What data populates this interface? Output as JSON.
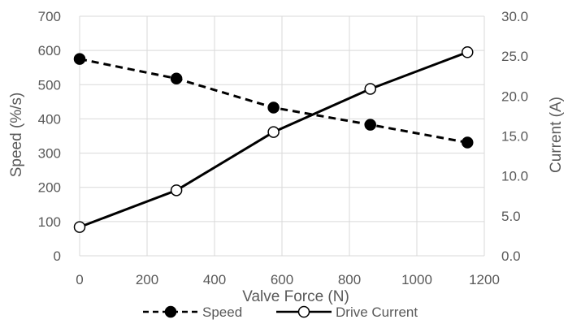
{
  "chart_data": {
    "type": "line",
    "title": "",
    "xlabel": "Valve Force (N)",
    "ylabel": "Speed (%/s)",
    "y2label": "Current (A)",
    "xlim": [
      0,
      1200
    ],
    "ylim": [
      0,
      700
    ],
    "y2lim": [
      0,
      30
    ],
    "x_ticks": [
      0,
      200,
      400,
      600,
      800,
      1000,
      1200
    ],
    "y_ticks": [
      0,
      100,
      200,
      300,
      400,
      500,
      600,
      700
    ],
    "y2_ticks": [
      "0.0",
      "5.0",
      "10.0",
      "15.0",
      "20.0",
      "25.0",
      "30.0"
    ],
    "grid": true,
    "legend_position": "bottom",
    "series": [
      {
        "name": "Speed",
        "axis": "left",
        "line_style": "dashed",
        "marker": "filled-circle",
        "color": "#000000",
        "x": [
          0,
          287,
          575,
          862,
          1150
        ],
        "y": [
          575,
          518,
          433,
          383,
          331
        ]
      },
      {
        "name": "Drive Current",
        "axis": "right",
        "line_style": "solid",
        "marker": "open-circle",
        "color": "#000000",
        "x": [
          0,
          287,
          575,
          862,
          1150
        ],
        "y": [
          3.6,
          8.2,
          15.5,
          20.9,
          25.5
        ]
      }
    ]
  }
}
